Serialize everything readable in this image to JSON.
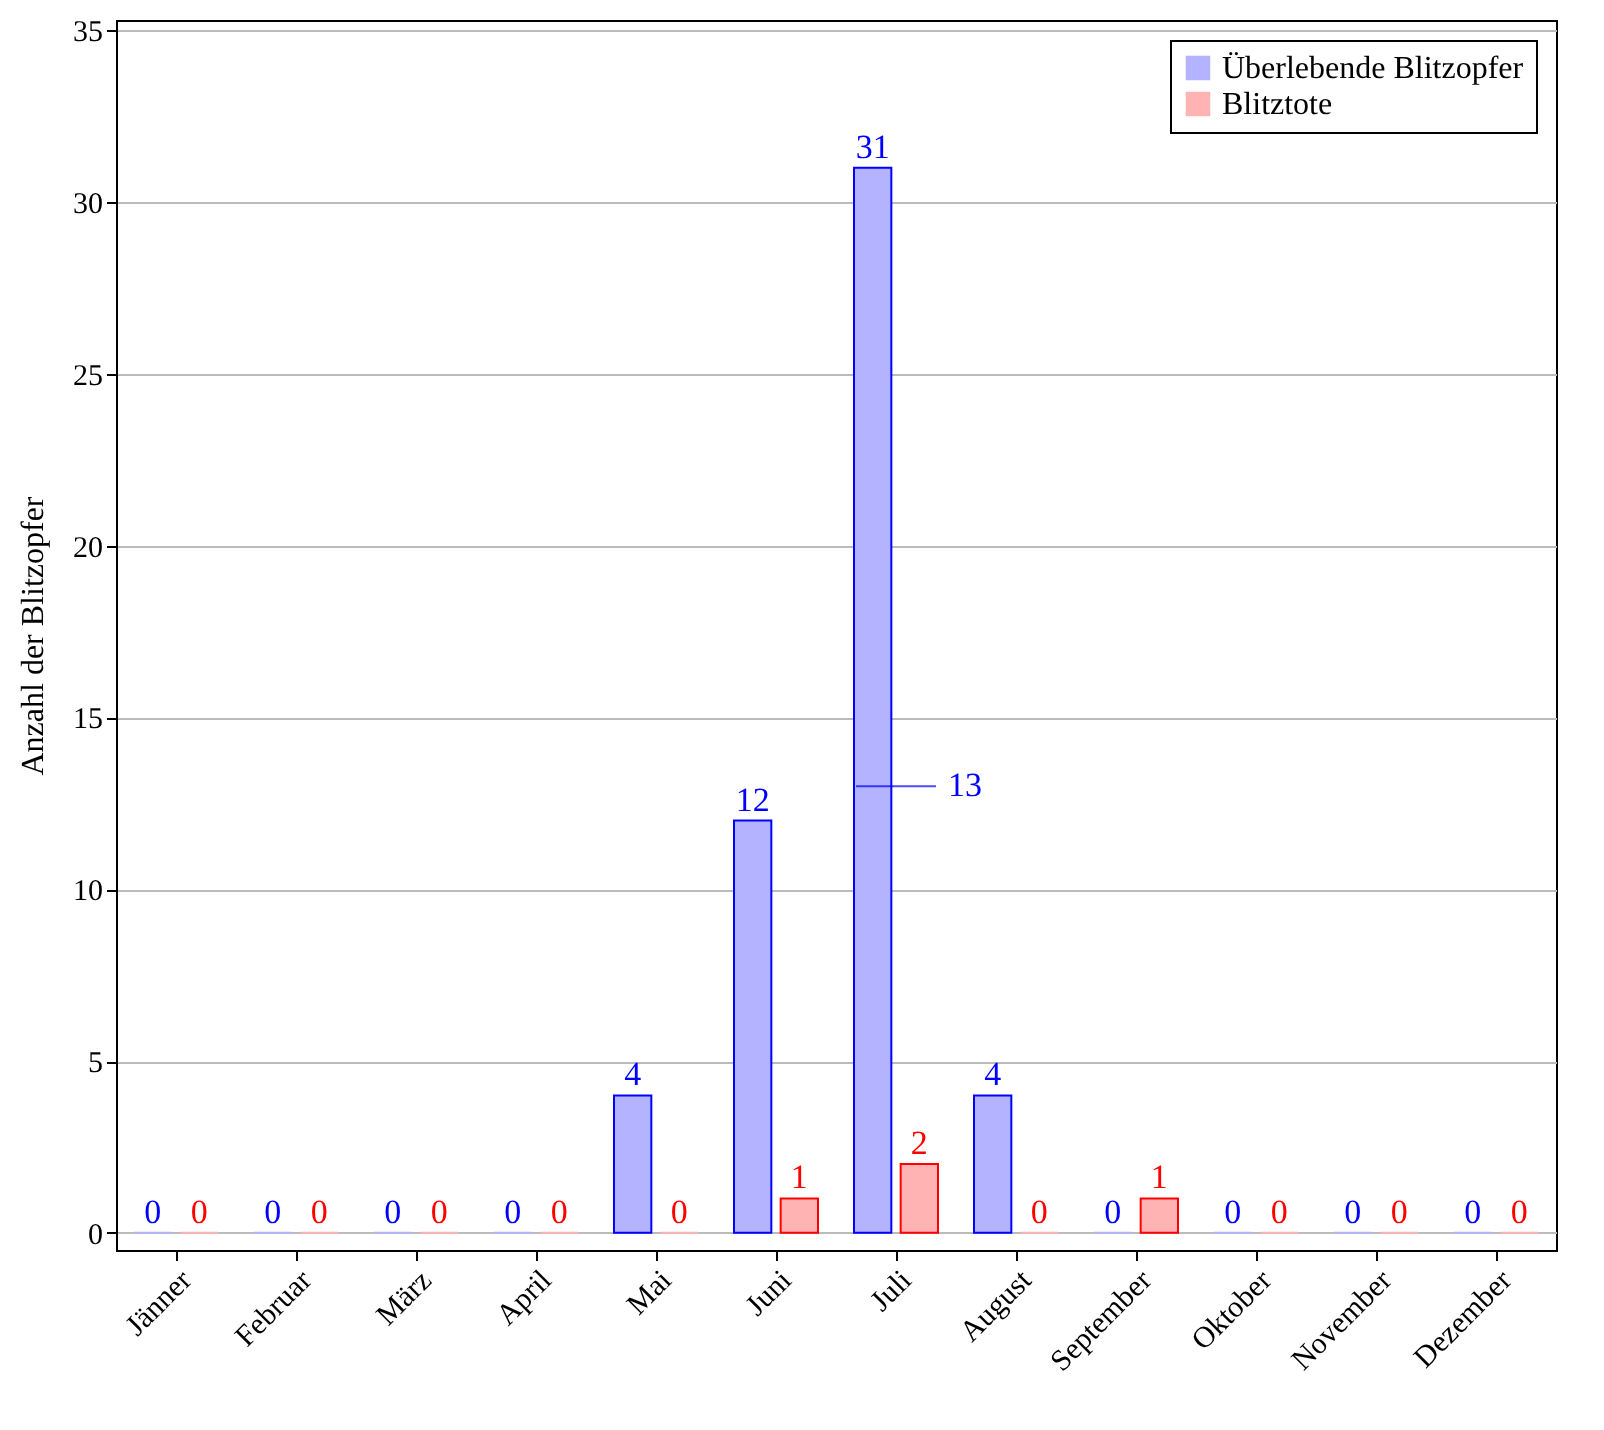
{
  "chart_data": {
    "type": "bar",
    "ylabel": "Anzahl der Blitzopfer",
    "categories": [
      "Jänner",
      "Februar",
      "März",
      "April",
      "Mai",
      "Juni",
      "Juli",
      "August",
      "September",
      "Oktober",
      "November",
      "Dezember"
    ],
    "series": [
      {
        "name": "Überlebende Blitzopfer",
        "color": "#b3b3ff",
        "values": [
          0,
          0,
          0,
          0,
          4,
          12,
          31,
          4,
          0,
          0,
          0,
          0
        ]
      },
      {
        "name": "Blitztote",
        "color": "#ffb3b3",
        "values": [
          0,
          0,
          0,
          0,
          0,
          1,
          2,
          0,
          1,
          0,
          0,
          0
        ]
      }
    ],
    "ylim": [
      -0.5,
      35.3
    ],
    "yticks": [
      0,
      5,
      10,
      15,
      20,
      25,
      30,
      35
    ],
    "grid": "y",
    "legend": "top right",
    "data_labels": true,
    "annotations": [
      {
        "text": "13",
        "x": "Juli",
        "y": 13
      }
    ]
  }
}
